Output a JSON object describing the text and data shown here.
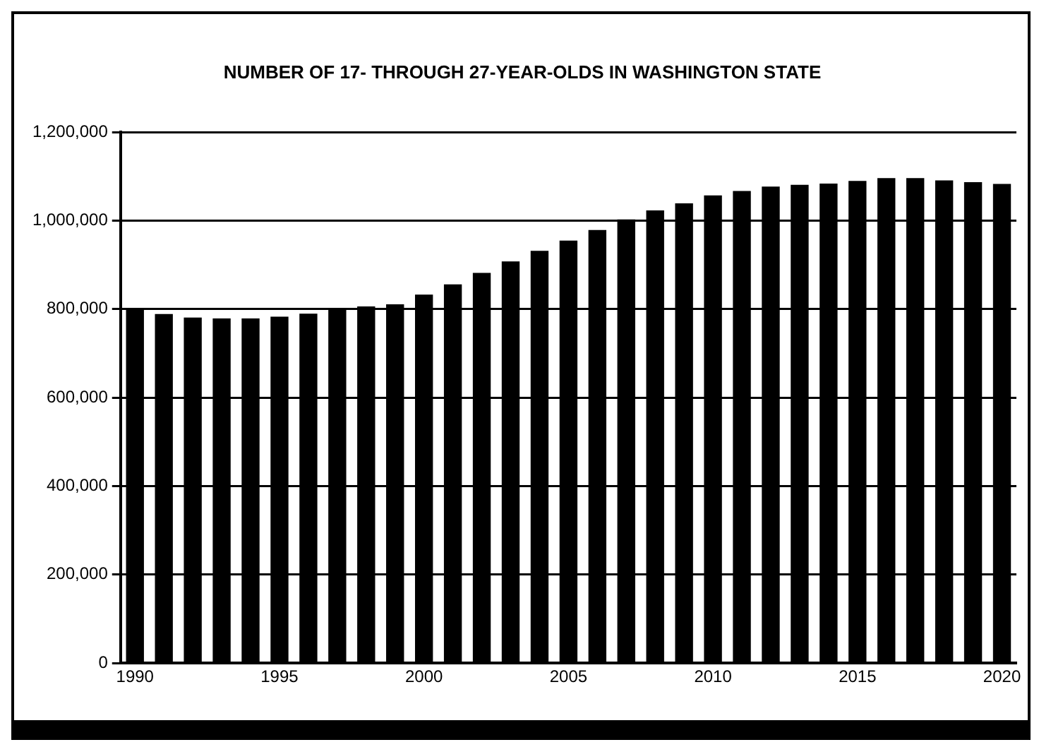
{
  "chart_data": {
    "type": "bar",
    "title": "NUMBER OF 17- THROUGH 27-YEAR-OLDS IN WASHINGTON STATE",
    "categories": [
      "1990",
      null,
      null,
      null,
      null,
      "1995",
      null,
      null,
      null,
      null,
      "2000",
      null,
      null,
      null,
      null,
      "2005",
      null,
      null,
      null,
      null,
      "2010",
      null,
      null,
      null,
      null,
      "2015",
      null,
      null,
      null,
      null,
      "2020"
    ],
    "values": [
      800000,
      789000,
      781000,
      779000,
      779000,
      783000,
      790000,
      798000,
      806000,
      811000,
      833000,
      856000,
      882000,
      908000,
      932000,
      955000,
      979000,
      1003000,
      1023000,
      1039000,
      1057000,
      1067000,
      1077000,
      1081000,
      1084000,
      1090000,
      1096000,
      1096000,
      1091000,
      1087000,
      1083000
    ],
    "color": "#000000",
    "ylim": [
      0,
      1200000
    ],
    "yticks": [
      0,
      {
        "value": 200000,
        "label": "200,000"
      },
      {
        "value": 400000,
        "label": "400,000"
      },
      {
        "value": 600000,
        "label": "600,000"
      },
      {
        "value": 800000,
        "label": "800,000"
      },
      {
        "value": 1000000,
        "label": "1,000,000"
      },
      {
        "value": 1200000,
        "label": "1,200,000"
      }
    ],
    "grid": "y"
  }
}
